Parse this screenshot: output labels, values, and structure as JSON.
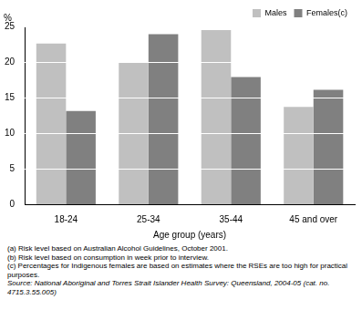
{
  "chart_data": {
    "type": "bar",
    "ylabel": "%",
    "xlabel": "Age group (years)",
    "categories": [
      "18-24",
      "25-34",
      "35-44",
      "45 and over"
    ],
    "series": [
      {
        "name": "Males",
        "color": "#c0c0c0",
        "values": [
          22.6,
          20.0,
          24.5,
          13.7
        ]
      },
      {
        "name": "Females(c)",
        "color": "#808080",
        "values": [
          13.1,
          23.9,
          17.9,
          16.1
        ]
      }
    ],
    "ylim": [
      0,
      25
    ],
    "yticks": [
      0,
      5,
      10,
      15,
      20,
      25
    ],
    "grid": true,
    "legend": "upper right",
    "notes": [
      "(a) Risk level based on Australian Alcohol Guidelines, October 2001.",
      "(b) Risk level based on consumption in week prior to interview.",
      "(c) Percentages for Indigenous females are based on estimates where the RSEs are too high for practical purposes.",
      "Source: National Aboriginal and Torres Strait Islander Health Survey: Queensland, 2004-05 (cat. no. 4715.3.55.005)"
    ]
  }
}
